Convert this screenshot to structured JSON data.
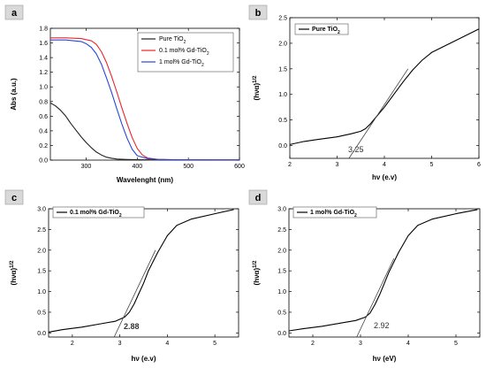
{
  "chart_data": [
    {
      "panel": "a",
      "type": "line",
      "xlabel": "Wavelenght (nm)",
      "ylabel": "Abs (a.u.)",
      "xlim": [
        230,
        600
      ],
      "ylim": [
        0,
        1.8
      ],
      "xticks": [
        "300",
        "400",
        "500",
        "600"
      ],
      "yticks": [
        "0.0",
        "0.2",
        "0.4",
        "0.6",
        "0.8",
        "1.0",
        "1.2",
        "1.4",
        "1.6",
        "1.8"
      ],
      "legend_position": "top-right",
      "series": [
        {
          "name": "Pure TiO2",
          "color": "#222222",
          "x": [
            230,
            240,
            250,
            260,
            270,
            280,
            290,
            300,
            310,
            320,
            330,
            340,
            350,
            360,
            380,
            400,
            450,
            500,
            600
          ],
          "y": [
            0.78,
            0.74,
            0.68,
            0.6,
            0.5,
            0.41,
            0.32,
            0.24,
            0.17,
            0.11,
            0.07,
            0.04,
            0.025,
            0.015,
            0.008,
            0.005,
            0.003,
            0.002,
            0.002
          ]
        },
        {
          "name": "0.1 mol% Gd-TiO2",
          "color": "#e8262a",
          "x": [
            230,
            260,
            290,
            310,
            320,
            330,
            340,
            350,
            360,
            370,
            380,
            390,
            400,
            410,
            420,
            440,
            470,
            500,
            600
          ],
          "y": [
            1.67,
            1.67,
            1.66,
            1.63,
            1.58,
            1.48,
            1.33,
            1.14,
            0.93,
            0.71,
            0.5,
            0.31,
            0.16,
            0.07,
            0.03,
            0.01,
            0.005,
            0.004,
            0.003
          ]
        },
        {
          "name": "1 mol% Gd-TiO2",
          "color": "#2846d8",
          "x": [
            230,
            260,
            290,
            300,
            310,
            320,
            330,
            340,
            350,
            360,
            370,
            380,
            390,
            400,
            420,
            440,
            470,
            500,
            600
          ],
          "y": [
            1.64,
            1.64,
            1.62,
            1.59,
            1.54,
            1.45,
            1.31,
            1.12,
            0.92,
            0.7,
            0.49,
            0.3,
            0.15,
            0.06,
            0.02,
            0.01,
            0.005,
            0.004,
            0.003
          ]
        }
      ]
    },
    {
      "panel": "b",
      "type": "line",
      "xlabel": "hν (e.v)",
      "ylabel": "(hνα)1/2",
      "xlim": [
        2,
        6
      ],
      "ylim": [
        -0.25,
        2.5
      ],
      "xticks": [
        "2",
        "3",
        "4",
        "5",
        "6"
      ],
      "yticks": [
        "0.0",
        "0.5",
        "1.0",
        "1.5",
        "2.0",
        "2.5"
      ],
      "legend_position": "top-left",
      "annotation": "3.25",
      "tangent": {
        "x": [
          3.25,
          4.5
        ],
        "y": [
          -0.25,
          1.5
        ]
      },
      "series": [
        {
          "name": "Pure TiO2",
          "color": "#000000",
          "x": [
            2.0,
            2.3,
            2.6,
            3.0,
            3.3,
            3.5,
            3.6,
            3.7,
            3.8,
            4.0,
            4.2,
            4.4,
            4.6,
            4.8,
            5.0,
            5.5,
            6.0
          ],
          "y": [
            0.02,
            0.08,
            0.12,
            0.17,
            0.23,
            0.28,
            0.33,
            0.42,
            0.53,
            0.75,
            1.0,
            1.25,
            1.48,
            1.67,
            1.82,
            2.05,
            2.28
          ]
        }
      ]
    },
    {
      "panel": "c",
      "type": "line",
      "xlabel": "hν (e.v)",
      "ylabel": "(hνα)1/2",
      "xlim": [
        1.5,
        5.5
      ],
      "ylim": [
        -0.1,
        3.0
      ],
      "xticks": [
        "2",
        "3",
        "4",
        "5"
      ],
      "yticks": [
        "0.0",
        "0.5",
        "1.0",
        "1.5",
        "2.0",
        "2.5",
        "3.0"
      ],
      "legend_position": "top-left",
      "annotation": "2.88",
      "tangent": {
        "x": [
          2.88,
          3.75
        ],
        "y": [
          -0.1,
          2.0
        ]
      },
      "series": [
        {
          "name": "0.1 mol% Gd-TiO2",
          "color": "#000000",
          "x": [
            1.5,
            1.8,
            2.2,
            2.6,
            2.9,
            3.1,
            3.2,
            3.3,
            3.4,
            3.5,
            3.6,
            3.8,
            4.0,
            4.2,
            4.5,
            5.0,
            5.4
          ],
          "y": [
            0.02,
            0.08,
            0.14,
            0.22,
            0.28,
            0.38,
            0.5,
            0.7,
            0.95,
            1.2,
            1.5,
            1.95,
            2.35,
            2.6,
            2.75,
            2.88,
            2.98
          ]
        }
      ]
    },
    {
      "panel": "d",
      "type": "line",
      "xlabel": "hν (eV)",
      "ylabel": "(hνα)1/2",
      "xlim": [
        1.5,
        5.5
      ],
      "ylim": [
        -0.1,
        3.0
      ],
      "xticks": [
        "2",
        "3",
        "4",
        "5"
      ],
      "yticks": [
        "0.0",
        "0.5",
        "1.0",
        "1.5",
        "2.0",
        "2.5",
        "3.0"
      ],
      "legend_position": "top-left",
      "annotation": "2.92",
      "tangent": {
        "x": [
          2.92,
          3.7
        ],
        "y": [
          -0.1,
          1.8
        ]
      },
      "series": [
        {
          "name": "1 mol% Gd-TiO2",
          "color": "#000000",
          "x": [
            1.5,
            1.8,
            2.2,
            2.6,
            2.9,
            3.1,
            3.2,
            3.3,
            3.4,
            3.5,
            3.6,
            3.8,
            4.0,
            4.2,
            4.5,
            5.0,
            5.45
          ],
          "y": [
            0.05,
            0.1,
            0.16,
            0.24,
            0.3,
            0.38,
            0.48,
            0.68,
            0.92,
            1.2,
            1.48,
            1.95,
            2.35,
            2.6,
            2.75,
            2.88,
            2.98
          ]
        }
      ]
    }
  ],
  "labels": {
    "legend_a": [
      {
        "base": "Pure TiO",
        "sub": "2"
      },
      {
        "base": "0.1 mol% Gd-TiO",
        "sub": "2"
      },
      {
        "base": "1 mol% Gd-TiO",
        "sub": "2"
      }
    ],
    "legend_b": {
      "base": "Pure TiO",
      "sub": "2"
    },
    "legend_c": {
      "base": "0.1 mol% Gd-TiO",
      "sub": "2"
    },
    "legend_d": {
      "base": "1 mol% Gd-TiO",
      "sub": "2"
    },
    "ylabel_tauc": {
      "base": "(hνα)",
      "sup": "1/2"
    }
  },
  "colors": {
    "panel_label_bg": "#d9d9d9",
    "tangent": "#444444"
  }
}
